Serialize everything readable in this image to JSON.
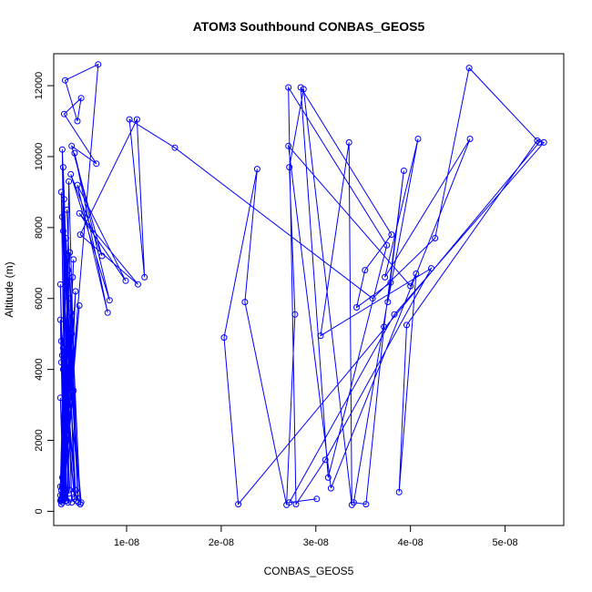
{
  "chart_data": {
    "type": "line",
    "title": "ATOM3 Southbound CONBAS_GEOS5",
    "xlabel": "CONBAS_GEOS5",
    "ylabel": "Altitude (m)",
    "xlim": [
      2.3e-09,
      5.62e-08
    ],
    "ylim": [
      -400,
      12900
    ],
    "x_ticks": [
      1e-08,
      2e-08,
      3e-08,
      4e-08,
      5e-08
    ],
    "x_tick_labels": [
      "1e-08",
      "2e-08",
      "3e-08",
      "4e-08",
      "5e-08"
    ],
    "y_ticks": [
      0,
      2000,
      4000,
      6000,
      8000,
      10000,
      12000
    ],
    "y_tick_labels": [
      "0",
      "2000",
      "4000",
      "6000",
      "8000",
      "10000",
      "12000"
    ],
    "grid": false,
    "series_color": "#0000ff",
    "series": [
      {
        "x": [
          3.8e-09,
          3.3e-09,
          4.5e-09,
          3.2e-09,
          3.6e-09,
          3.1e-09,
          4.2e-09,
          3.4e-09,
          3.5e-09,
          3.9e-09,
          4.8e-09,
          3.7e-09,
          5.1e-09,
          3.2e-09,
          4.6e-09,
          3.3e-09,
          4.9e-09,
          3.6e-09,
          3e-09,
          4e-09,
          3.2e-09,
          4.4e-09,
          3.3e-09,
          3.8e-09,
          3.1e-09,
          4.3e-09,
          3.5e-09,
          3e-09,
          3.7e-09,
          4.6e-09,
          3.2e-09,
          3.9e-09,
          3.3e-09,
          5e-09,
          3.1e-09,
          4.1e-09,
          3.4e-09,
          3e-09,
          5.2e-09,
          3.6e-09,
          3.2e-09,
          4.2e-09,
          3.4e-09,
          3.1e-09,
          4e-09,
          3.3e-09,
          4.7e-09,
          3.2e-09,
          3.9e-09,
          3.1e-09,
          4.5e-09,
          3.3e-09,
          3e-09,
          4.1e-09,
          3.2e-09,
          3.8e-09,
          3.1e-09,
          4.4e-09,
          3.3e-09,
          3e-09,
          3.5e-09,
          3.2e-09,
          3.1e-09,
          3e-09,
          3.2e-09,
          3.1e-09,
          7e-09,
          3.5e-09,
          4.8e-09,
          5.2e-09,
          3.4e-09,
          6.8e-09,
          4.2e-09,
          7.4e-09,
          4.1e-09,
          8.2e-09,
          4.5e-09,
          8e-09,
          4.8e-09,
          9.9e-09,
          5e-09,
          1.12e-08,
          5.1e-09,
          1.11e-08,
          1.19e-08,
          1.03e-08,
          1.51e-08,
          3.6e-08,
          4.26e-08,
          4.62e-08,
          5.36e-08,
          2.18e-08,
          2.03e-08,
          2.38e-08,
          2.25e-08,
          2.69e-08,
          2.78e-08,
          2.72e-08,
          2.87e-08,
          3.38e-08,
          3.35e-08,
          3.05e-08,
          4.22e-08,
          3.1e-08,
          2.79e-08,
          2.71e-08,
          3.75e-08,
          3.13e-08,
          2.84e-08,
          3.8e-08,
          3.52e-08,
          3.43e-08,
          3.79e-08,
          3.4e-08,
          3.53e-08,
          3.72e-08,
          3.93e-08,
          3.76e-08,
          4.08e-08,
          3.73e-08,
          4.63e-08,
          3.16e-08,
          2.71e-08,
          4e-08,
          4.06e-08,
          3.88e-08,
          3.96e-08,
          5.34e-08,
          5.41e-08,
          3.83e-08,
          2.72e-08,
          3.01e-08
        ],
        "y": [
          250,
          9700,
          400,
          10200,
          300,
          9000,
          250,
          8800,
          350,
          9300,
          500,
          8500,
          200,
          8300,
          600,
          7900,
          250,
          7700,
          450,
          7300,
          300,
          7100,
          500,
          6800,
          350,
          6600,
          550,
          6400,
          300,
          6200,
          700,
          6000,
          400,
          5800,
          600,
          5600,
          350,
          5400,
          250,
          5200,
          700,
          5000,
          400,
          4800,
          600,
          4600,
          300,
          4400,
          500,
          4200,
          350,
          4000,
          700,
          3800,
          450,
          3600,
          300,
          3400,
          600,
          3200,
          400,
          950,
          350,
          300,
          250,
          200,
          12600,
          12150,
          11000,
          11650,
          11200,
          9800,
          10300,
          7200,
          9500,
          5950,
          10100,
          5600,
          9200,
          6500,
          8400,
          6400,
          7800,
          11050,
          6600,
          11050,
          10250,
          6000,
          7700,
          12500,
          10400,
          200,
          4900,
          9650,
          5900,
          180,
          5550,
          9700,
          11900,
          180,
          10400,
          4950,
          6850,
          1450,
          200,
          11950,
          7500,
          950,
          11950,
          7800,
          6800,
          5750,
          6450,
          250,
          200,
          5200,
          9600,
          5900,
          10500,
          6600,
          10500,
          650,
          10300,
          6350,
          6700,
          540,
          5250,
          10450,
          10400,
          5550,
          250,
          350
        ]
      }
    ]
  }
}
